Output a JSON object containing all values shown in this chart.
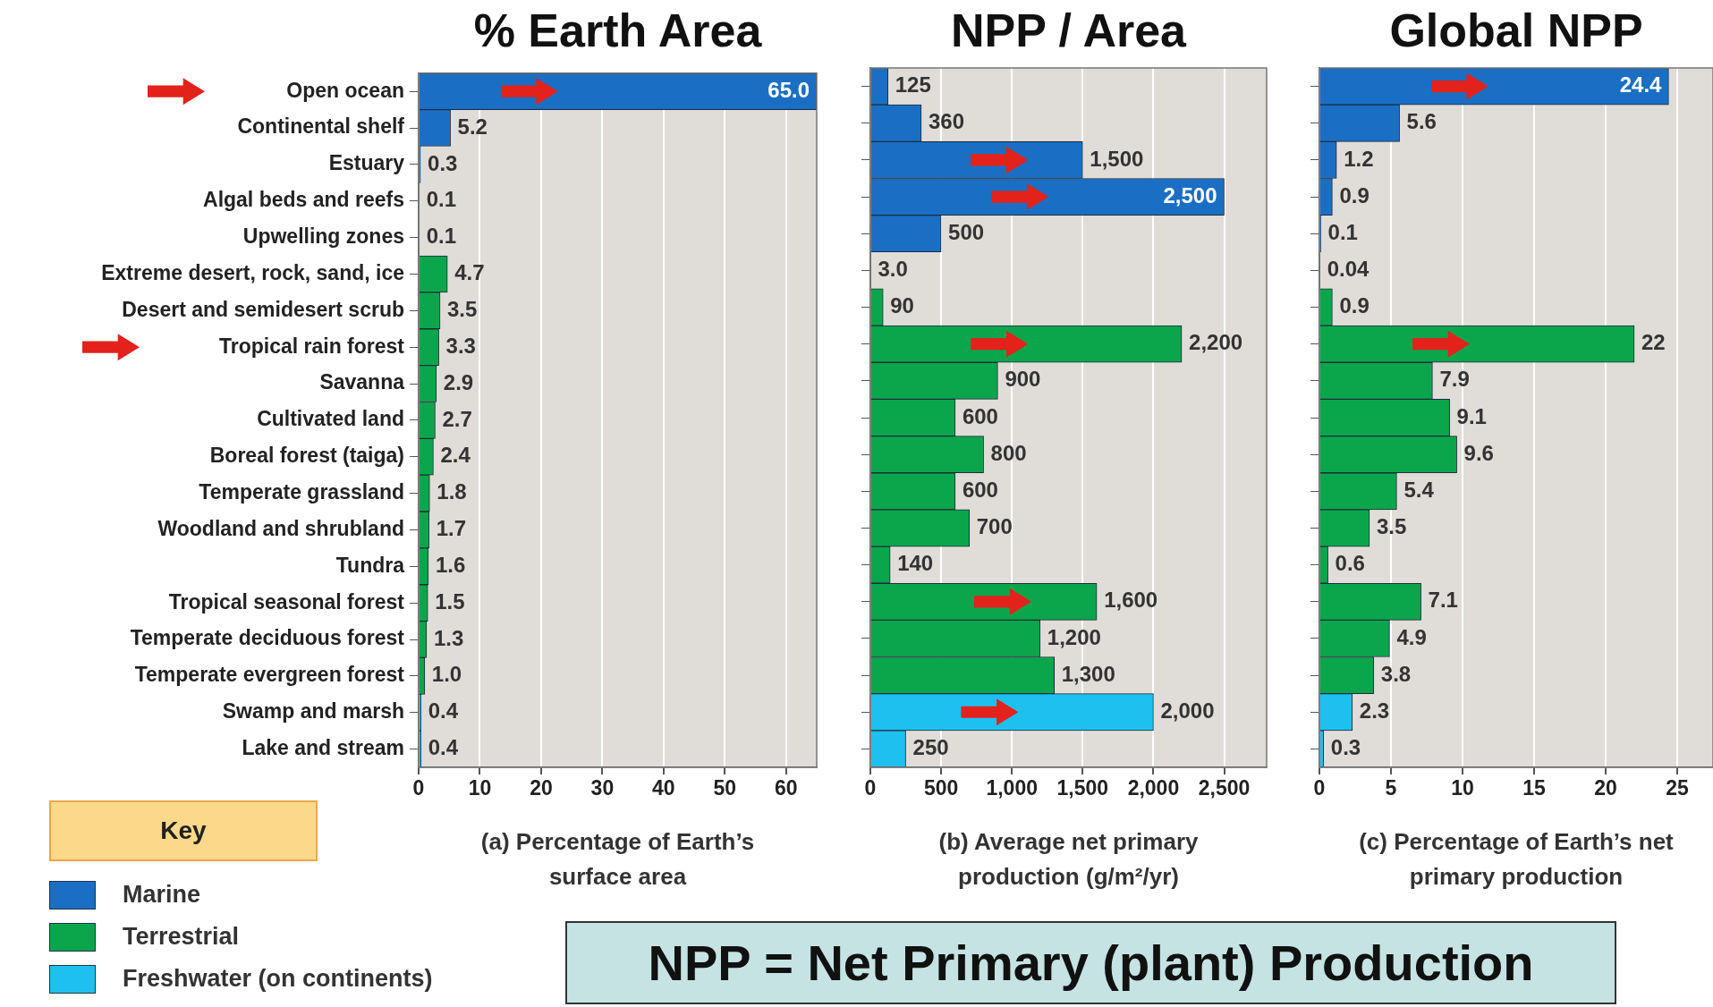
{
  "chart_data": [
    {
      "type": "bar",
      "orientation": "horizontal",
      "stacked": true,
      "title": "% Earth Area",
      "xlabel": "(a) Percentage of Earth’s surface area",
      "categories": [
        "Open ocean",
        "Continental shelf",
        "Estuary",
        "Algal beds and reefs",
        "Upwelling zones",
        "Extreme desert, rock, sand, ice",
        "Desert and semidesert scrub",
        "Tropical rain forest",
        "Savanna",
        "Cultivated land",
        "Boreal forest (taiga)",
        "Temperate grassland",
        "Woodland and shrubland",
        "Tundra",
        "Tropical seasonal forest",
        "Temperate deciduous forest",
        "Temperate evergreen forest",
        "Swamp and marsh",
        "Lake and stream"
      ],
      "series": [
        {
          "name": "Marine",
          "color": "#1a6fc4",
          "values": [
            65.0,
            5.2,
            0.3,
            0.1,
            0.1,
            null,
            null,
            null,
            null,
            null,
            null,
            null,
            null,
            null,
            null,
            null,
            null,
            null,
            null
          ],
          "value_labels": [
            "65.0",
            "5.2",
            "0.3",
            "0.1",
            "0.1",
            null,
            null,
            null,
            null,
            null,
            null,
            null,
            null,
            null,
            null,
            null,
            null,
            null,
            null
          ]
        },
        {
          "name": "Terrestrial",
          "color": "#0ba64c",
          "values": [
            null,
            null,
            null,
            null,
            null,
            4.7,
            3.5,
            3.3,
            2.9,
            2.7,
            2.4,
            1.8,
            1.7,
            1.6,
            1.5,
            1.3,
            1.0,
            null,
            null
          ],
          "value_labels": [
            null,
            null,
            null,
            null,
            null,
            "4.7",
            "3.5",
            "3.3",
            "2.9",
            "2.7",
            "2.4",
            "1.8",
            "1.7",
            "1.6",
            "1.5",
            "1.3",
            "1.0",
            null,
            null
          ]
        },
        {
          "name": "Freshwater (on continents)",
          "color": "#1ec0f0",
          "values": [
            null,
            null,
            null,
            null,
            null,
            null,
            null,
            null,
            null,
            null,
            null,
            null,
            null,
            null,
            null,
            null,
            null,
            0.4,
            0.4
          ],
          "value_labels": [
            null,
            null,
            null,
            null,
            null,
            null,
            null,
            null,
            null,
            null,
            null,
            null,
            null,
            null,
            null,
            null,
            null,
            "0.4",
            "0.4"
          ]
        }
      ],
      "xlim": [
        0,
        65
      ],
      "xticks": [
        0,
        10,
        20,
        30,
        40,
        50,
        60
      ],
      "grid": "x",
      "legend": "bottom left",
      "legend_title": "Key"
    },
    {
      "type": "bar",
      "orientation": "horizontal",
      "stacked": true,
      "title": "NPP / Area",
      "xlabel": "(b) Average net primary production (g/m²/yr)",
      "categories": [
        null,
        null,
        null,
        null,
        null,
        null,
        null,
        null,
        null,
        null,
        null,
        null,
        null,
        null,
        null,
        null,
        null,
        null,
        null
      ],
      "series": [
        {
          "color": "#1a6fc4",
          "values": [
            125,
            360,
            1500,
            2500,
            500,
            null,
            null,
            null,
            null,
            null,
            null,
            null,
            null,
            null,
            null,
            null,
            null,
            null,
            null
          ],
          "value_labels": [
            "125",
            "360",
            "1,500",
            "2,500",
            "500",
            null,
            null,
            null,
            null,
            null,
            null,
            null,
            null,
            null,
            null,
            null,
            null,
            null,
            null
          ]
        },
        {
          "color": "#0ba64c",
          "values": [
            null,
            null,
            null,
            null,
            null,
            3.0,
            90,
            2200,
            900,
            600,
            800,
            600,
            700,
            140,
            1600,
            1200,
            1300,
            null,
            null
          ],
          "value_labels": [
            null,
            null,
            null,
            null,
            null,
            "3.0",
            "90",
            "2,200",
            "900",
            "600",
            "800",
            "600",
            "700",
            "140",
            "1,600",
            "1,200",
            "1,300",
            null,
            null
          ]
        },
        {
          "color": "#1ec0f0",
          "values": [
            null,
            null,
            null,
            null,
            null,
            null,
            null,
            null,
            null,
            null,
            null,
            null,
            null,
            null,
            null,
            null,
            null,
            2000,
            250
          ],
          "value_labels": [
            null,
            null,
            null,
            null,
            null,
            null,
            null,
            null,
            null,
            null,
            null,
            null,
            null,
            null,
            null,
            null,
            null,
            "2,000",
            "250"
          ]
        }
      ],
      "xlim": [
        0,
        2800
      ],
      "xticks": [
        0,
        500,
        {
          "value": 1000,
          "label": "1,000"
        },
        {
          "value": 1500,
          "label": "1,500"
        },
        {
          "value": 2000,
          "label": "2,000"
        },
        {
          "value": 2500,
          "label": "2,500"
        }
      ],
      "grid": "x",
      "tick_labels": "x",
      "annotations": [
        "NPP = Net Primary (plant) Production"
      ]
    },
    {
      "type": "bar",
      "orientation": "horizontal",
      "stacked": true,
      "title": "Global NPP",
      "xlabel": "(c) Percentage of Earth’s net primary production",
      "categories": [
        null,
        null,
        null,
        null,
        null,
        null,
        null,
        null,
        null,
        null,
        null,
        null,
        null,
        null,
        null,
        null,
        null,
        null,
        null
      ],
      "series": [
        {
          "color": "#1a6fc4",
          "values": [
            24.4,
            5.6,
            1.2,
            0.9,
            0.1,
            null,
            null,
            null,
            null,
            null,
            null,
            null,
            null,
            null,
            null,
            null,
            null,
            null,
            null
          ],
          "value_labels": [
            "24.4",
            "5.6",
            "1.2",
            "0.9",
            "0.1",
            null,
            null,
            null,
            null,
            null,
            null,
            null,
            null,
            null,
            null,
            null,
            null,
            null,
            null
          ]
        },
        {
          "color": "#0ba64c",
          "values": [
            null,
            null,
            null,
            null,
            null,
            0.04,
            0.9,
            22,
            7.9,
            9.1,
            9.6,
            5.4,
            3.5,
            0.6,
            7.1,
            4.9,
            3.8,
            null,
            null
          ],
          "value_labels": [
            null,
            null,
            null,
            null,
            null,
            "0.04",
            "0.9",
            "22",
            "7.9",
            "9.1",
            "9.6",
            "5.4",
            "3.5",
            "0.6",
            "7.1",
            "4.9",
            "3.8",
            null,
            null
          ]
        },
        {
          "color": "#1ec0f0",
          "values": [
            null,
            null,
            null,
            null,
            null,
            null,
            null,
            null,
            null,
            null,
            null,
            null,
            null,
            null,
            null,
            null,
            null,
            2.3,
            0.3
          ],
          "value_labels": [
            null,
            null,
            null,
            null,
            null,
            null,
            null,
            null,
            null,
            null,
            null,
            null,
            null,
            null,
            null,
            null,
            null,
            "2.3",
            "0.3"
          ]
        }
      ],
      "xlim": [
        0,
        27.5
      ],
      "xticks": [
        0,
        5,
        10,
        15,
        20,
        25
      ],
      "grid": "x",
      "tick_labels": "x"
    }
  ]
}
